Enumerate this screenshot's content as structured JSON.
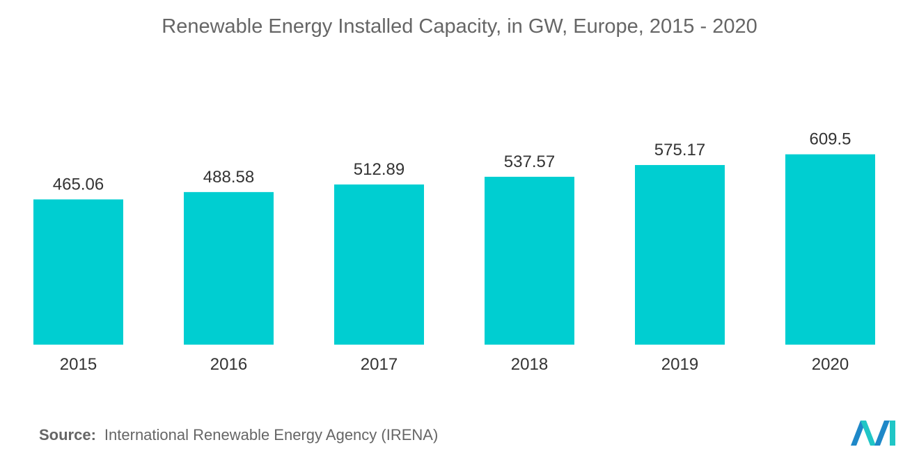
{
  "chart_data": {
    "type": "bar",
    "title": "Renewable Energy Installed Capacity, in GW, Europe, 2015 - 2020",
    "categories": [
      "2015",
      "2016",
      "2017",
      "2018",
      "2019",
      "2020"
    ],
    "values": [
      465.06,
      488.58,
      512.89,
      537.57,
      575.17,
      609.5
    ],
    "value_labels": [
      "465.06",
      "488.58",
      "512.89",
      "537.57",
      "575.17",
      "609.5"
    ],
    "xlabel": "",
    "ylabel": "",
    "grid": false,
    "bar_color": "#00CED1"
  },
  "source": {
    "key": "Source:",
    "text": "International Renewable Energy Agency (IRENA)"
  },
  "logo": {
    "icon": "mordor-intelligence-logo-icon",
    "colors": [
      "#1E88C8",
      "#20C6C6"
    ]
  }
}
